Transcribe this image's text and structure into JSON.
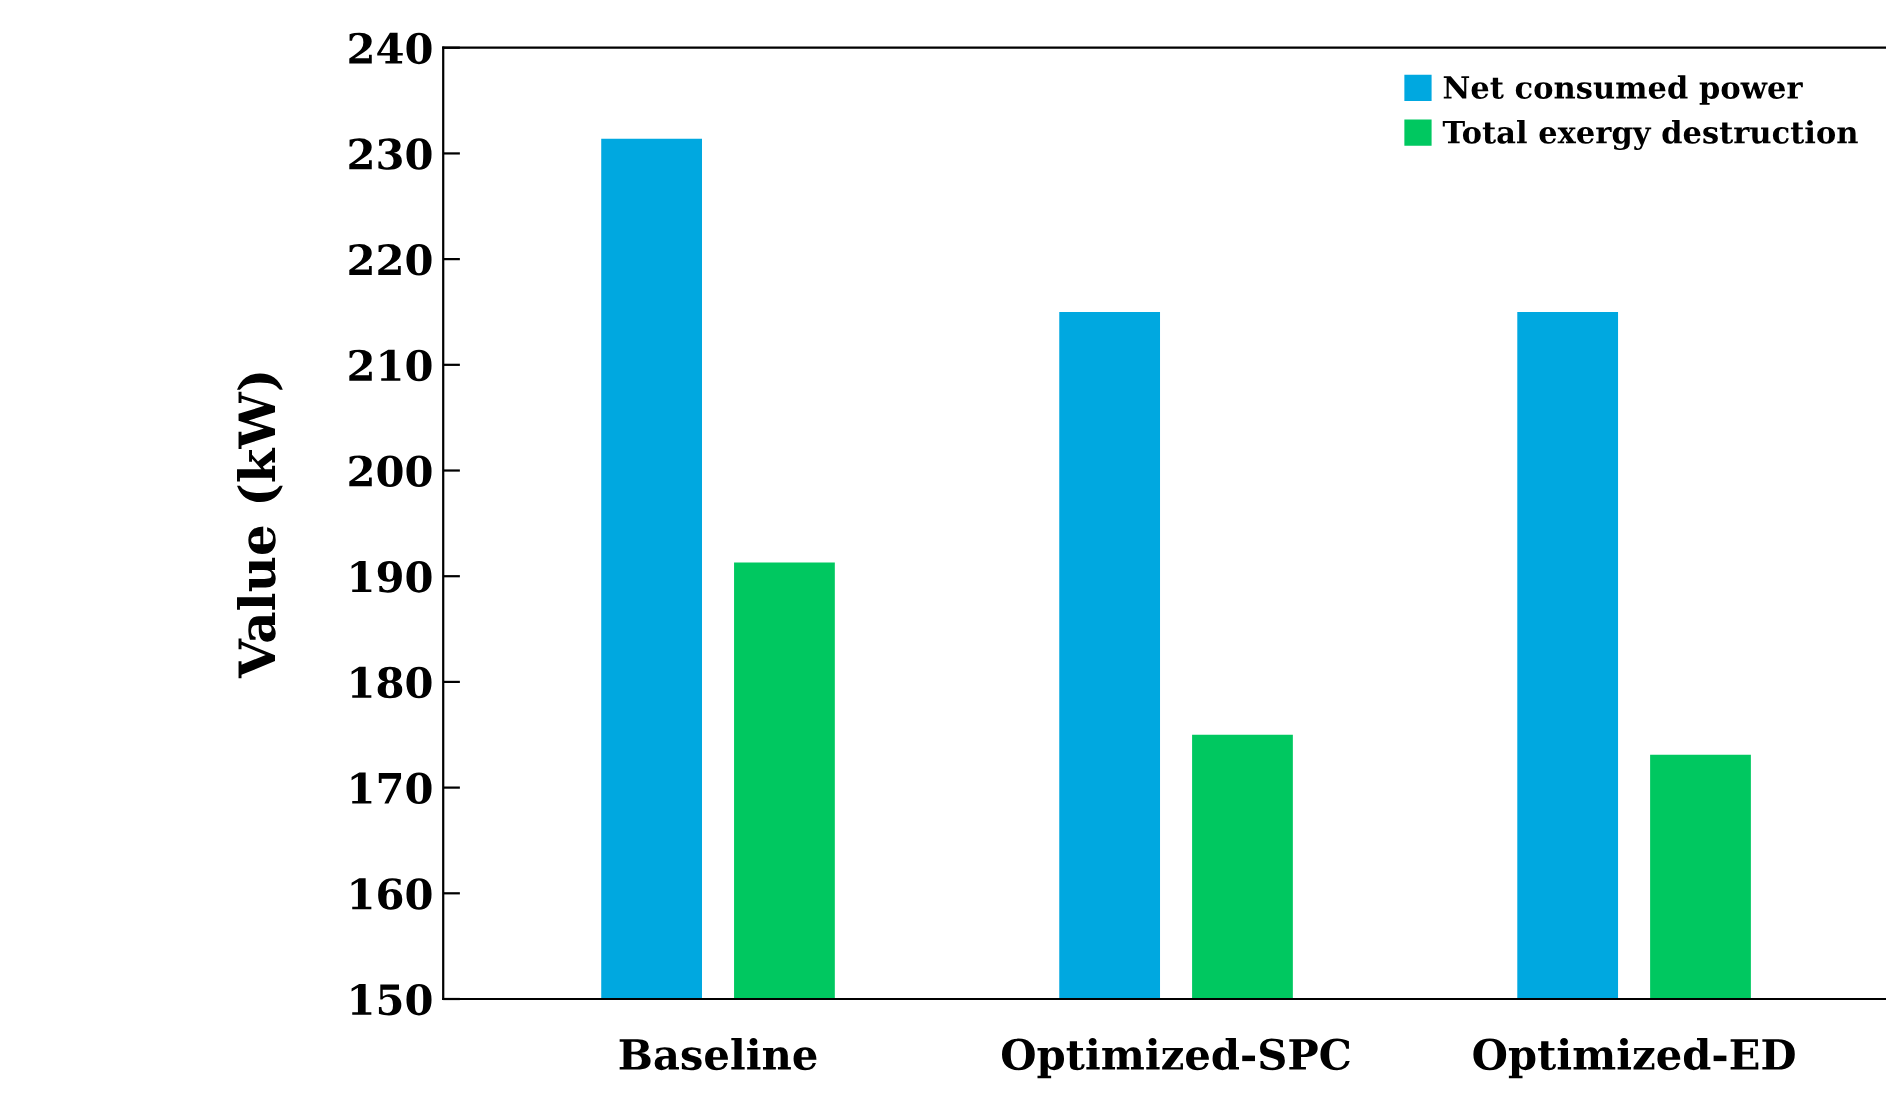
{
  "chart_data": {
    "type": "bar",
    "ylabel": "Value (kW)",
    "categories": [
      "Baseline",
      "Optimized-SPC",
      "Optimized-ED"
    ],
    "series": [
      {
        "name": "Net consumed power",
        "color": "#00a8e0",
        "values": [
          231.4,
          215,
          215
        ]
      },
      {
        "name": "Total exergy destruction",
        "color": "#00c860",
        "values": [
          191.3,
          175,
          173.1
        ]
      }
    ],
    "ylim": [
      150,
      240
    ],
    "yticks": [
      150,
      160,
      170,
      180,
      190,
      200,
      210,
      220,
      230,
      240
    ],
    "grid": false,
    "legend": "top right"
  }
}
